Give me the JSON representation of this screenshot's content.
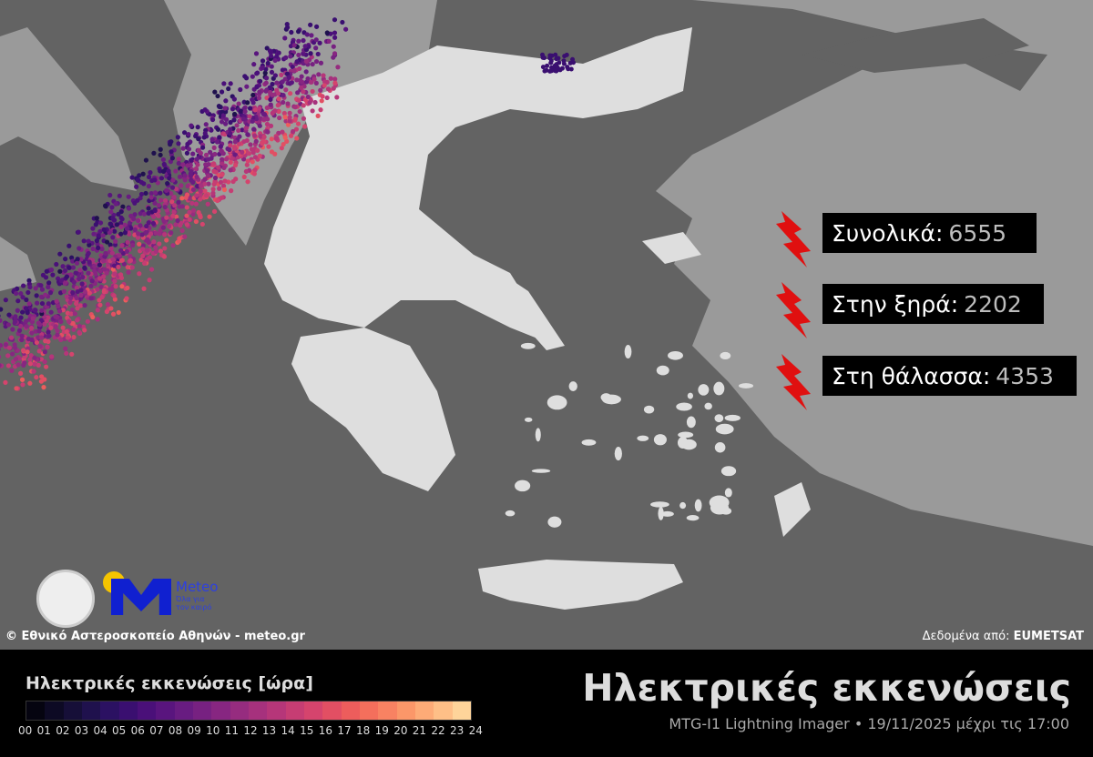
{
  "map": {
    "sea_color": "#636363",
    "neighbor_land_color": "#9a9a9a",
    "greece_land_color": "#dedede",
    "lake_color": "#3cb8d0"
  },
  "stats": [
    {
      "label": "Συνολικά:",
      "value": "6555",
      "icon": "lightning-bolt-icon"
    },
    {
      "label": "Στην ξηρά:",
      "value": "2202",
      "icon": "lightning-bolt-icon"
    },
    {
      "label": "Στη θάλασσα:",
      "value": "4353",
      "icon": "lightning-bolt-icon"
    }
  ],
  "bolt_color": "#e01010",
  "copyright": "© Εθνικό Αστεροσκοπείο Αθηνών - meteo.gr",
  "source_label": "Δεδομένα από:",
  "source_name": "EUMETSAT",
  "logo": {
    "name": "Meteo",
    "tagline1": "Όλα για",
    "tagline2": "τον καιρό"
  },
  "legend": {
    "title": "Ηλεκτρικές εκκενώσεις [ώρα]",
    "ticks": [
      "00",
      "01",
      "02",
      "03",
      "04",
      "05",
      "06",
      "07",
      "08",
      "09",
      "10",
      "11",
      "12",
      "13",
      "14",
      "15",
      "16",
      "17",
      "18",
      "19",
      "20",
      "21",
      "22",
      "23",
      "24"
    ],
    "colors": [
      "#050410",
      "#0d0a24",
      "#160f38",
      "#1f114d",
      "#2b1162",
      "#3a0f70",
      "#4a1079",
      "#59157e",
      "#681c81",
      "#772181",
      "#872681",
      "#962c7f",
      "#a6317d",
      "#b63679",
      "#c63d73",
      "#d5446d",
      "#e24f63",
      "#ed5d5c",
      "#f46f5c",
      "#f88262",
      "#fb9769",
      "#fdab77",
      "#febf87",
      "#fed49a",
      "#fde8af",
      "#fcfdbf"
    ]
  },
  "title": "Ηλεκτρικές εκκενώσεις",
  "subtitle": "MTG-I1 Lightning Imager • 19/11/2025 μέχρι τις 17:00"
}
